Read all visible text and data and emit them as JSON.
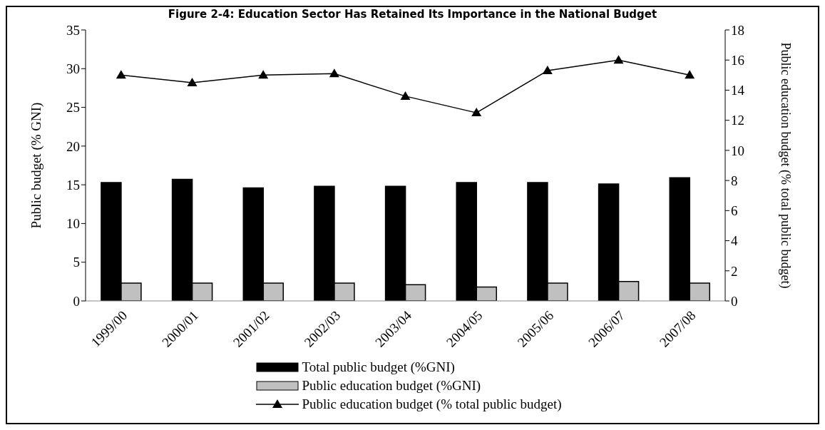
{
  "chart_data": {
    "type": "bar",
    "title": "Figure 2-4: Education Sector Has Retained Its Importance in the National Budget",
    "categories": [
      "1999/00",
      "2000/01",
      "2001/02",
      "2002/03",
      "2003/04",
      "2004/05",
      "2005/06",
      "2006/07",
      "2007/08"
    ],
    "series": [
      {
        "name": "Total public budget (%GNI)",
        "color": "#000000",
        "values": [
          15.3,
          15.7,
          14.6,
          14.8,
          14.8,
          15.3,
          15.3,
          15.1,
          15.9
        ]
      },
      {
        "name": "Public education budget (%GNI)",
        "color": "#c0c0c0",
        "values": [
          2.3,
          2.3,
          2.3,
          2.3,
          2.1,
          1.8,
          2.3,
          2.5,
          2.3
        ]
      },
      {
        "name": "Public education budget (% total public budget)",
        "type": "line",
        "axis": "y2",
        "color": "#000000",
        "marker": "triangle",
        "values": [
          15.0,
          14.5,
          15.0,
          15.1,
          13.6,
          12.5,
          15.3,
          16.0,
          15.0
        ]
      }
    ],
    "ylabel": "Public budget (% GNI)",
    "y2label": "Public education budget (% total public budget)",
    "ylim": [
      0,
      35
    ],
    "yticks": [
      0,
      5,
      10,
      15,
      20,
      25,
      30,
      35
    ],
    "y2lim": [
      0,
      18
    ],
    "y2ticks": [
      0,
      2,
      4,
      6,
      8,
      10,
      12,
      14,
      16,
      18
    ],
    "legend": "bottom"
  }
}
